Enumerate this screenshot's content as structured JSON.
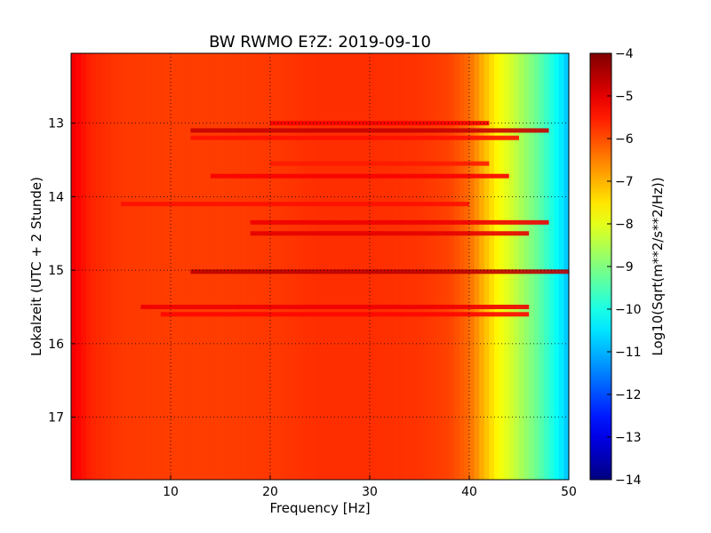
{
  "chart_data": {
    "type": "heatmap",
    "title": "BW RWMO E?Z: 2019-09-10",
    "xlabel": "Frequency [Hz]",
    "ylabel": "Lokalzeit (UTC + 2 Stunde)",
    "xlim": [
      0,
      50
    ],
    "ylim": [
      12.05,
      17.85
    ],
    "y_inverted": true,
    "x_ticks": [
      10,
      20,
      30,
      40,
      50
    ],
    "x_tick_labels": [
      "10",
      "20",
      "30",
      "40",
      "50"
    ],
    "y_ticks": [
      13,
      14,
      15,
      16,
      17
    ],
    "y_tick_labels": [
      "13",
      "14",
      "15",
      "16",
      "17"
    ],
    "grid": true,
    "colormap": "jet",
    "colorbar": {
      "label": "Log10(Sqrt(m**2/s**2/Hz))",
      "range": [
        -14,
        -4
      ],
      "ticks": [
        -4,
        -5,
        -6,
        -7,
        -8,
        -9,
        -10,
        -11,
        -12,
        -13,
        -14
      ],
      "tick_labels": [
        "−4",
        "−5",
        "−6",
        "−7",
        "−8",
        "−9",
        "−10",
        "−11",
        "−12",
        "−13",
        "−14"
      ]
    },
    "spectral_profile": {
      "frequency_hz": [
        0,
        2,
        5,
        10,
        15,
        20,
        25,
        30,
        35,
        38,
        40,
        41,
        42,
        43,
        44,
        45,
        46,
        47,
        48,
        49,
        50
      ],
      "log10_amplitude": [
        -5.1,
        -5.6,
        -5.8,
        -5.85,
        -5.85,
        -5.8,
        -5.7,
        -5.7,
        -5.75,
        -5.9,
        -6.3,
        -6.8,
        -7.3,
        -7.8,
        -8.1,
        -8.5,
        -8.9,
        -9.3,
        -9.8,
        -10.3,
        -10.9
      ]
    },
    "bands": [
      {
        "time": 13.0,
        "fmin": 20,
        "fmax": 42,
        "log10_amplitude": -5.2
      },
      {
        "time": 13.1,
        "fmin": 12,
        "fmax": 48,
        "log10_amplitude": -4.7
      },
      {
        "time": 13.2,
        "fmin": 12,
        "fmax": 45,
        "log10_amplitude": -5.4
      },
      {
        "time": 13.55,
        "fmin": 20,
        "fmax": 42,
        "log10_amplitude": -5.5
      },
      {
        "time": 13.72,
        "fmin": 14,
        "fmax": 44,
        "log10_amplitude": -5.2
      },
      {
        "time": 14.1,
        "fmin": 5,
        "fmax": 40,
        "log10_amplitude": -5.4
      },
      {
        "time": 14.35,
        "fmin": 18,
        "fmax": 48,
        "log10_amplitude": -5.1
      },
      {
        "time": 14.5,
        "fmin": 18,
        "fmax": 46,
        "log10_amplitude": -5.0
      },
      {
        "time": 15.02,
        "fmin": 12,
        "fmax": 50,
        "log10_amplitude": -4.6
      },
      {
        "time": 15.5,
        "fmin": 7,
        "fmax": 46,
        "log10_amplitude": -5.1
      },
      {
        "time": 15.6,
        "fmin": 9,
        "fmax": 46,
        "log10_amplitude": -5.3
      }
    ]
  }
}
